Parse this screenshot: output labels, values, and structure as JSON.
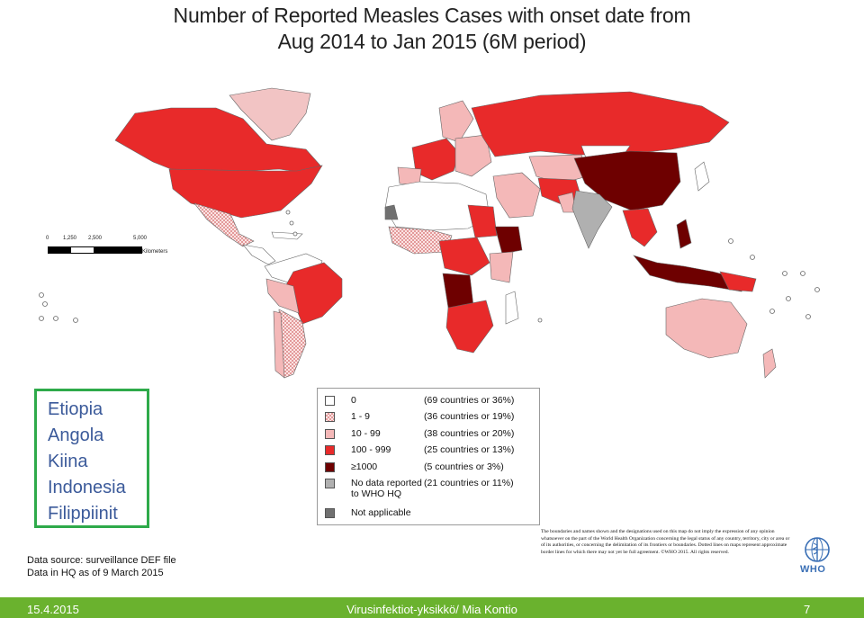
{
  "title": {
    "line1": "Number of Reported Measles Cases with onset date from",
    "line2": "Aug 2014 to Jan 2015 (6M period)"
  },
  "scale_bar": {
    "ticks": [
      "0",
      "1,250",
      "2,500",
      "5,000"
    ],
    "unit": "Kilometers"
  },
  "highlight_countries": [
    "Etiopia",
    "Angola",
    "Kiina",
    "Indonesia",
    "Filippiinit"
  ],
  "legend": {
    "items": [
      {
        "label": "0",
        "count": "(69 countries or 36%)",
        "color": "#ffffff",
        "pattern": "none"
      },
      {
        "label": "1 - 9",
        "count": "(36 countries or 19%)",
        "color": "#f2c4c4",
        "pattern": "check"
      },
      {
        "label": "10 - 99",
        "count": "(38 countries or 20%)",
        "color": "#f4b8b8",
        "pattern": "none"
      },
      {
        "label": "100 - 999",
        "count": "(25 countries or 13%)",
        "color": "#e82a2a",
        "pattern": "none"
      },
      {
        "label": "≥1000",
        "count": "(5 countries or 3%)",
        "color": "#6e0000",
        "pattern": "none"
      },
      {
        "label": "No data reported\nto WHO HQ",
        "count": "(21 countries or 11%)",
        "color": "#b0b0b0",
        "pattern": "none"
      },
      {
        "label": "Not applicable",
        "count": "",
        "color": "#707070",
        "pattern": "none"
      }
    ]
  },
  "disclaimer": "The boundaries and names shown and the designations used on this map do not imply the expression of any opinion whatsoever on the part of the World Health Organization concerning the legal status of any country, territory, city or area or of its authorities, or concerning the delimitation of its frontiers or boundaries. Dotted lines on maps represent approximate border lines for which there may not yet be full agreement. ©WHO 2015. All rights reserved.",
  "logo": {
    "text": "WHO"
  },
  "data_source": {
    "line1": "Data source: surveillance DEF file",
    "line2": "Data in HQ as of 9 March 2015"
  },
  "footer": {
    "date": "15.4.2015",
    "org": "Virusinfektiot-yksikkö/ Mia Kontio",
    "page": "7"
  },
  "colors": {
    "zero": "#ffffff",
    "low_1_9": "#f2c4c4",
    "mid_10_99": "#f4b8b8",
    "high_100_999": "#e82a2a",
    "very_high_1000": "#6e0000",
    "no_data": "#b0b0b0",
    "not_applicable": "#707070",
    "footer_bar": "#6ab22e",
    "highlight_border": "#2eaa4a"
  }
}
